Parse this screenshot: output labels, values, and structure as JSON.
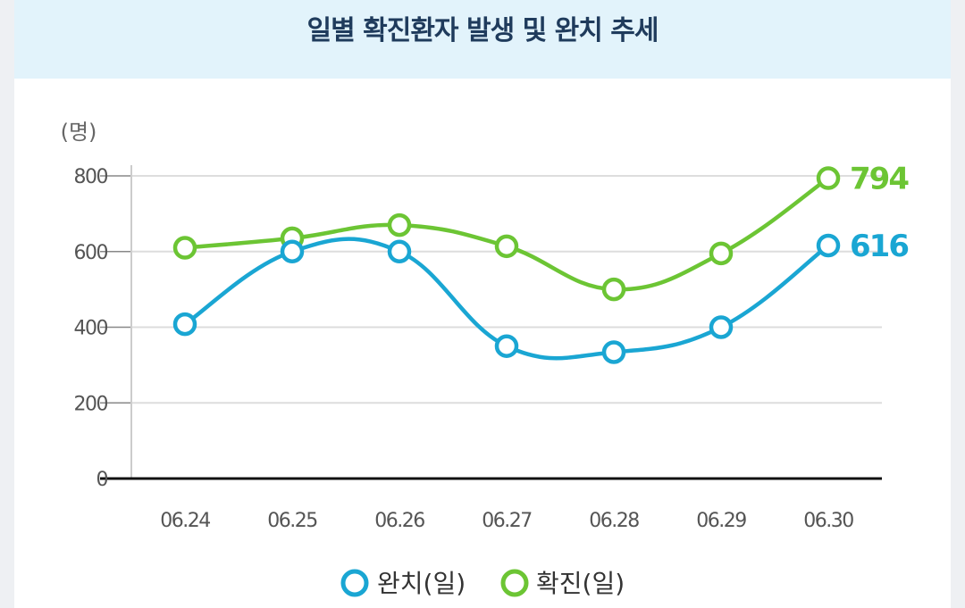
{
  "chart_data": {
    "type": "line",
    "title": "일별 확진환자 발생 및 완치 추세",
    "y_unit": "(명)",
    "categories": [
      "06.24",
      "06.25",
      "06.26",
      "06.27",
      "06.28",
      "06.29",
      "06.30"
    ],
    "ylim": [
      0,
      800
    ],
    "yticks": [
      "0",
      "200",
      "400",
      "600",
      "800"
    ],
    "grid": true,
    "legend_position": "bottom-center",
    "series": [
      {
        "name": "완치(일)",
        "color": "#1aa6d3",
        "values": [
          408,
          600,
          600,
          350,
          334,
          400,
          616
        ],
        "end_label": "616"
      },
      {
        "name": "확진(일)",
        "color": "#6cc534",
        "values": [
          610,
          635,
          670,
          614,
          500,
          595,
          794
        ],
        "end_label": "794"
      }
    ]
  }
}
